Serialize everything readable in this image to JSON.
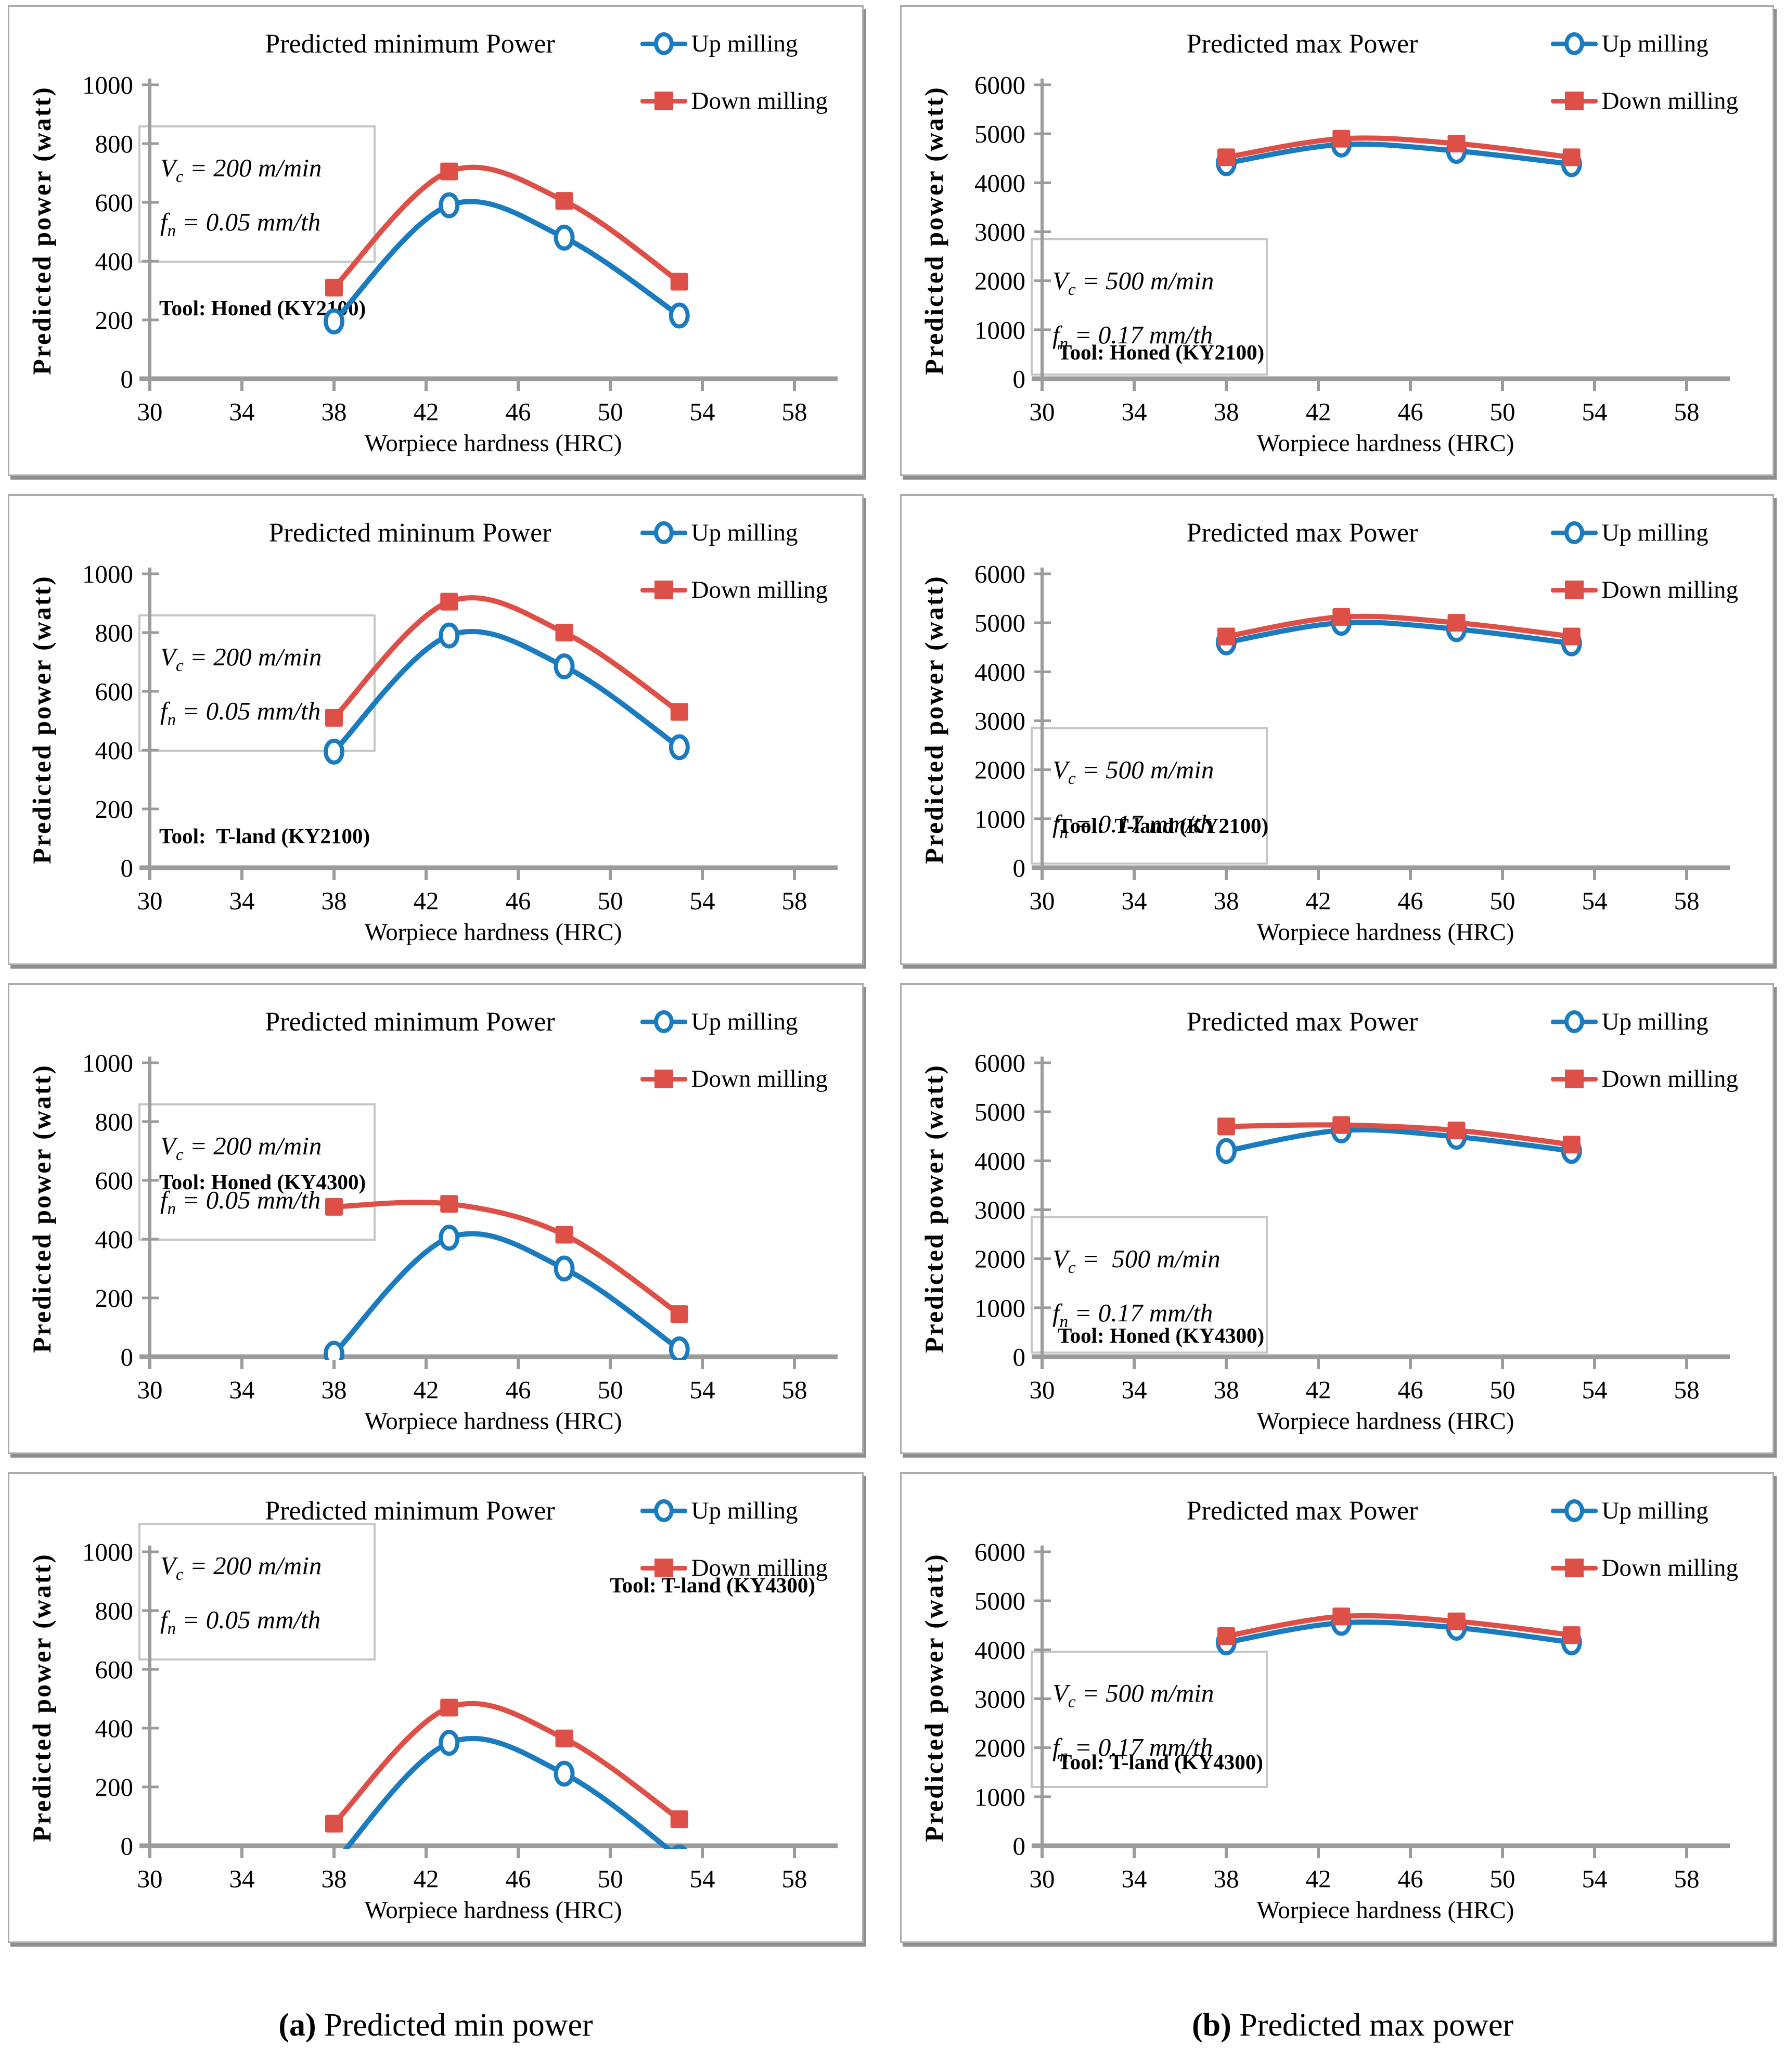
{
  "legend": {
    "up": "Up milling",
    "down": "Down milling"
  },
  "axes": {
    "x_label": "Worpiece hardness (HRC)",
    "y_label": "Predicted power (watt)"
  },
  "colors": {
    "up": "#1B7BBF",
    "down": "#DD4F47",
    "axis": "#9B9B9B"
  },
  "params_symbols": {
    "v": "V",
    "v_sub": "c",
    "f": "f",
    "f_sub": "n"
  },
  "caption": {
    "a_marker": "(a)",
    "a_text": " Predicted min power",
    "b_marker": "(b)",
    "b_text": " Predicted max power"
  },
  "chart_data": [
    {
      "type": "line",
      "title": "Predicted minimum Power",
      "tool": "Tool: Honed (KY2100)",
      "vc": " = 200 m/min",
      "fn": " = 0.05 mm/th",
      "xlabel": "Worpiece hardness (HRC)",
      "ylabel": "Predicted power (watt)",
      "x": [
        38,
        43,
        48,
        53
      ],
      "x_ticks": [
        30,
        34,
        38,
        42,
        46,
        50,
        54,
        58
      ],
      "y_ticks": [
        0,
        200,
        400,
        600,
        800,
        1000
      ],
      "xlim": [
        30,
        60
      ],
      "ylim": [
        0,
        1000
      ],
      "grid": false,
      "legend_position": "top-right",
      "series": [
        {
          "name": "Up milling",
          "marker": "open-circle",
          "color": "up",
          "values": [
            195,
            590,
            480,
            215
          ]
        },
        {
          "name": "Down milling",
          "marker": "filled-square",
          "color": "down",
          "values": [
            310,
            705,
            605,
            330
          ]
        }
      ]
    },
    {
      "type": "line",
      "title": "Predicted max Power",
      "tool": "Tool: Honed (KY2100)",
      "vc": " = 500 m/min",
      "fn": " = 0.17 mm/th",
      "xlabel": "Worpiece hardness (HRC)",
      "ylabel": "Predicted power (watt)",
      "x": [
        38,
        43,
        48,
        53
      ],
      "x_ticks": [
        30,
        34,
        38,
        42,
        46,
        50,
        54,
        58
      ],
      "y_ticks": [
        0,
        1000,
        2000,
        3000,
        4000,
        5000,
        6000
      ],
      "xlim": [
        30,
        60
      ],
      "ylim": [
        0,
        6000
      ],
      "grid": false,
      "legend_position": "top-right",
      "series": [
        {
          "name": "Up milling",
          "marker": "open-circle",
          "color": "up",
          "values": [
            4400,
            4780,
            4650,
            4380
          ]
        },
        {
          "name": "Down milling",
          "marker": "filled-square",
          "color": "down",
          "values": [
            4520,
            4900,
            4800,
            4520
          ]
        }
      ]
    },
    {
      "type": "line",
      "title": "Predicted mininum Power",
      "tool": "Tool:  T-land (KY2100)",
      "vc": " = 200 m/min",
      "fn": " = 0.05 mm/th",
      "xlabel": "Worpiece hardness (HRC)",
      "ylabel": "Predicted power (watt)",
      "x": [
        38,
        43,
        48,
        53
      ],
      "x_ticks": [
        30,
        34,
        38,
        42,
        46,
        50,
        54,
        58
      ],
      "y_ticks": [
        0,
        200,
        400,
        600,
        800,
        1000
      ],
      "xlim": [
        30,
        60
      ],
      "ylim": [
        0,
        1000
      ],
      "grid": false,
      "legend_position": "top-right",
      "series": [
        {
          "name": "Up milling",
          "marker": "open-circle",
          "color": "up",
          "values": [
            395,
            790,
            685,
            410
          ]
        },
        {
          "name": "Down milling",
          "marker": "filled-square",
          "color": "down",
          "values": [
            510,
            905,
            800,
            530
          ]
        }
      ]
    },
    {
      "type": "line",
      "title": "Predicted max Power",
      "tool": "Tool:  T-land (KY2100)",
      "vc": " = 500 m/min",
      "fn": " = 0.17 mm/th",
      "xlabel": "Worpiece hardness (HRC)",
      "ylabel": "Predicted power (watt)",
      "x": [
        38,
        43,
        48,
        53
      ],
      "x_ticks": [
        30,
        34,
        38,
        42,
        46,
        50,
        54,
        58
      ],
      "y_ticks": [
        0,
        1000,
        2000,
        3000,
        4000,
        5000,
        6000
      ],
      "xlim": [
        30,
        60
      ],
      "ylim": [
        0,
        6000
      ],
      "grid": false,
      "legend_position": "top-right",
      "series": [
        {
          "name": "Up milling",
          "marker": "open-circle",
          "color": "up",
          "values": [
            4600,
            5000,
            4870,
            4580
          ]
        },
        {
          "name": "Down milling",
          "marker": "filled-square",
          "color": "down",
          "values": [
            4720,
            5120,
            5000,
            4720
          ]
        }
      ]
    },
    {
      "type": "line",
      "title": "Predicted minimum Power",
      "tool": "Tool: Honed (KY4300)",
      "vc": " = 200 m/min",
      "fn": " = 0.05 mm/th",
      "xlabel": "Worpiece hardness (HRC)",
      "ylabel": "Predicted power (watt)",
      "x": [
        38,
        43,
        48,
        53
      ],
      "x_ticks": [
        30,
        34,
        38,
        42,
        46,
        50,
        54,
        58
      ],
      "y_ticks": [
        0,
        200,
        400,
        600,
        800,
        1000
      ],
      "xlim": [
        30,
        60
      ],
      "ylim": [
        0,
        1000
      ],
      "grid": false,
      "legend_position": "top-right",
      "series": [
        {
          "name": "Up milling",
          "marker": "open-circle",
          "color": "up",
          "values": [
            10,
            405,
            300,
            25
          ]
        },
        {
          "name": "Down milling",
          "marker": "filled-square",
          "color": "down",
          "values": [
            510,
            520,
            415,
            145
          ]
        }
      ]
    },
    {
      "type": "line",
      "title": "Predicted max Power",
      "tool": "Tool: Honed (KY4300)",
      "vc": " =  500 m/min",
      "fn": " = 0.17 mm/th",
      "xlabel": "Worpiece hardness (HRC)",
      "ylabel": "Predicted power (watt)",
      "x": [
        38,
        43,
        48,
        53
      ],
      "x_ticks": [
        30,
        34,
        38,
        42,
        46,
        50,
        54,
        58
      ],
      "y_ticks": [
        0,
        1000,
        2000,
        3000,
        4000,
        5000,
        6000
      ],
      "xlim": [
        30,
        60
      ],
      "ylim": [
        0,
        6000
      ],
      "grid": false,
      "legend_position": "top-right",
      "series": [
        {
          "name": "Up milling",
          "marker": "open-circle",
          "color": "up",
          "values": [
            4200,
            4620,
            4490,
            4200
          ]
        },
        {
          "name": "Down milling",
          "marker": "filled-square",
          "color": "down",
          "values": [
            4700,
            4730,
            4620,
            4330
          ]
        }
      ]
    },
    {
      "type": "line",
      "title": "Predicted minimum Power",
      "tool": "Tool: T-land (KY4300)",
      "vc": " = 200 m/min",
      "fn": " = 0.05 mm/th",
      "xlabel": "Worpiece hardness (HRC)",
      "ylabel": "Predicted power (watt)",
      "x": [
        38,
        43,
        48,
        53
      ],
      "x_ticks": [
        30,
        34,
        38,
        42,
        46,
        50,
        54,
        58
      ],
      "y_ticks": [
        0,
        200,
        400,
        600,
        800,
        1000
      ],
      "xlim": [
        30,
        60
      ],
      "ylim": [
        0,
        1000
      ],
      "grid": false,
      "legend_position": "top-right",
      "note": "up-milling curve clipped at y=0 near x=38 and x=53",
      "series": [
        {
          "name": "Up milling",
          "marker": "open-circle",
          "color": "up",
          "values": [
            -60,
            350,
            245,
            -40
          ]
        },
        {
          "name": "Down milling",
          "marker": "filled-square",
          "color": "down",
          "values": [
            75,
            470,
            365,
            90
          ]
        }
      ]
    },
    {
      "type": "line",
      "title": "Predicted max Power",
      "tool": "Tool: T-land (KY4300)",
      "vc": " = 500 m/min",
      "fn": " = 0.17 mm/th",
      "xlabel": "Worpiece hardness (HRC)",
      "ylabel": "Predicted power (watt)",
      "x": [
        38,
        43,
        48,
        53
      ],
      "x_ticks": [
        30,
        34,
        38,
        42,
        46,
        50,
        54,
        58
      ],
      "y_ticks": [
        0,
        1000,
        2000,
        3000,
        4000,
        5000,
        6000
      ],
      "xlim": [
        30,
        60
      ],
      "ylim": [
        0,
        6000
      ],
      "grid": false,
      "legend_position": "top-right",
      "series": [
        {
          "name": "Up milling",
          "marker": "open-circle",
          "color": "up",
          "values": [
            4150,
            4550,
            4450,
            4150
          ]
        },
        {
          "name": "Down milling",
          "marker": "filled-square",
          "color": "down",
          "values": [
            4280,
            4680,
            4580,
            4300
          ]
        }
      ]
    }
  ]
}
